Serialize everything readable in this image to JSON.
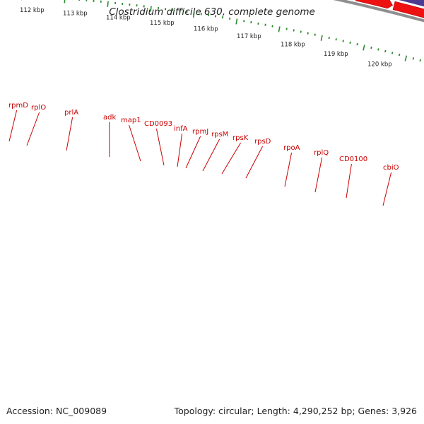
{
  "title": "Clostridium difficile 630, complete genome",
  "accession": "Accession: NC_009089",
  "summary": "Topology: circular; Length: 4,290,252 bp; Genes: 3,926",
  "colors": {
    "backbone": "#8f8f8f",
    "tick": "#2e8b2e",
    "gene_label": "#cc0000",
    "cds_arrow": "#ee1111",
    "feature_default": "#ef8a8a",
    "feature_prlA": "#a8e63e",
    "feature_adk": "#1fb6ee",
    "feature_rpoA": "#f28c0a",
    "feature_cbiO": "#4a3d8f"
  },
  "kbp_labels": [
    "112 kbp",
    "113 kbp",
    "114 kbp",
    "115 kbp",
    "116 kbp",
    "117 kbp",
    "118 kbp",
    "119 kbp",
    "120 kbp"
  ],
  "gene_labels": [
    "rpmD",
    "rplO",
    "prlA",
    "adk",
    "map1",
    "CD0093",
    "infA",
    "rpmJ",
    "rpsM",
    "rpsK",
    "rpsD",
    "rpoA",
    "rplQ",
    "CD0100",
    "cbiO"
  ],
  "features": [
    {
      "gene": "rpmD",
      "color": "#ef8a8a"
    },
    {
      "gene": "rplO",
      "color": "#ef8a8a"
    },
    {
      "gene": "prlA",
      "color": "#a8e63e"
    },
    {
      "gene": "adk",
      "color": "#1fb6ee"
    },
    {
      "gene": "map1",
      "color": "#ef8a8a"
    },
    {
      "gene": "CD0093",
      "color": "#ef8a8a"
    },
    {
      "gene": "infA",
      "color": "#ef8a8a"
    },
    {
      "gene": "rpmJ",
      "color": "#ef8a8a"
    },
    {
      "gene": "rpsM",
      "color": "#ef8a8a"
    },
    {
      "gene": "rpsK",
      "color": "#ef8a8a"
    },
    {
      "gene": "rpsD",
      "color": "#ef8a8a"
    },
    {
      "gene": "rpoA",
      "color": "#f28c0a"
    },
    {
      "gene": "rplQ",
      "color": "#ef8a8a"
    },
    {
      "gene": "CD0100",
      "color": "#ef8a8a"
    },
    {
      "gene": "cbiO",
      "color": "#4a3d8f"
    }
  ]
}
